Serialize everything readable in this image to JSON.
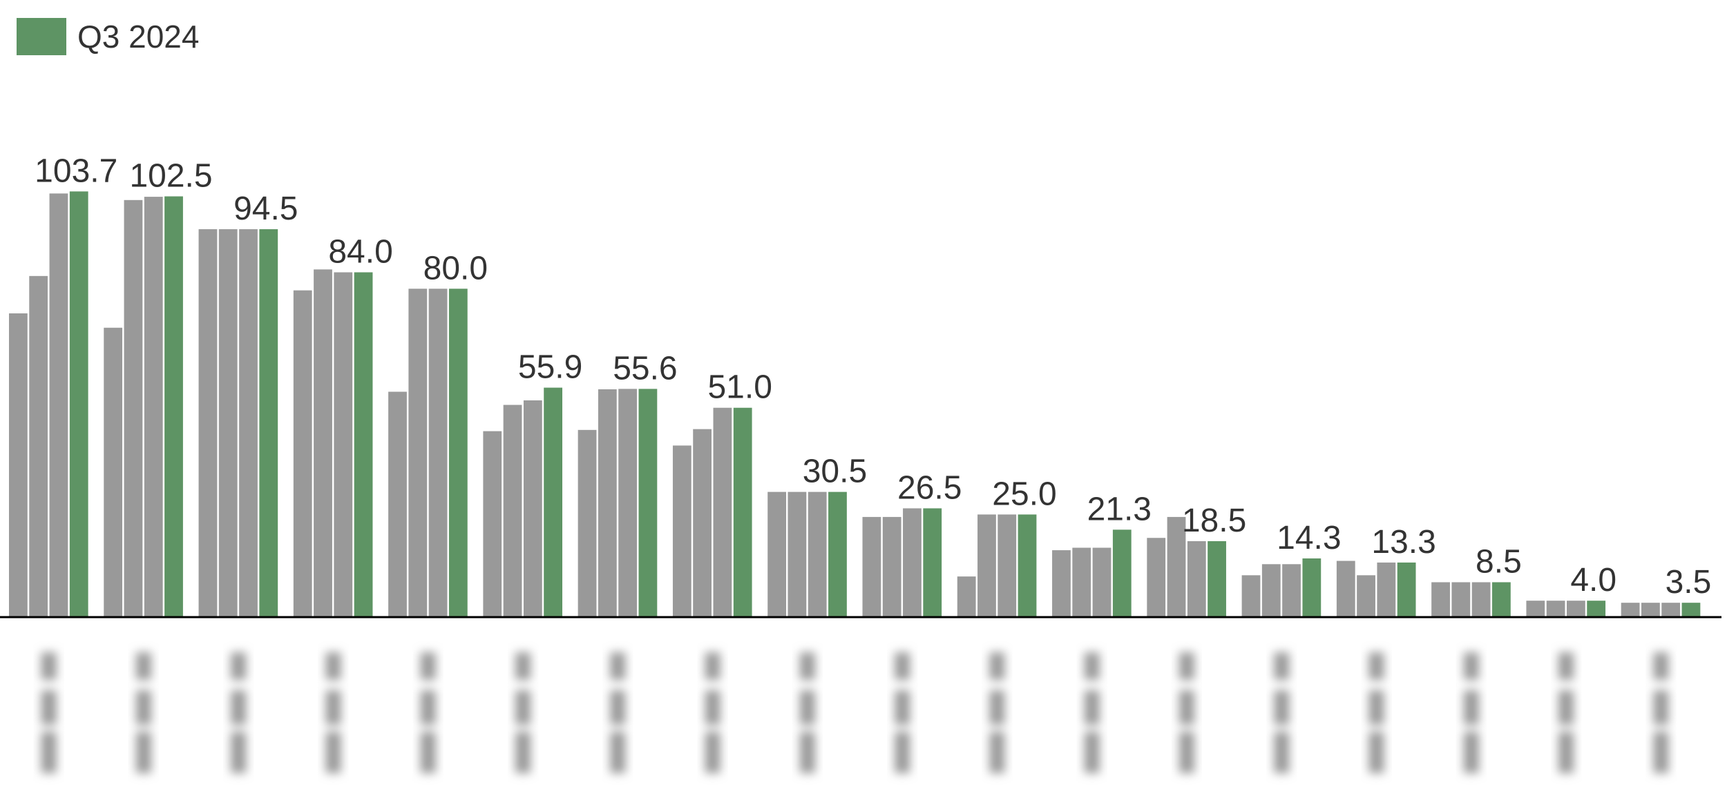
{
  "chart_data": {
    "type": "bar",
    "categories": [
      null,
      null,
      null,
      null,
      null,
      null,
      null,
      null,
      null,
      null,
      null,
      null,
      null,
      null,
      null,
      null,
      null,
      null
    ],
    "series": [
      {
        "color": "#999999",
        "values": [
          74.0,
          70.5,
          94.5,
          79.6,
          54.9,
          45.3,
          45.6,
          41.8,
          30.5,
          24.4,
          9.9,
          16.3,
          19.3,
          10.2,
          13.7,
          8.5,
          4.0,
          3.5
        ]
      },
      {
        "color": "#999999",
        "values": [
          83.1,
          101.6,
          94.5,
          84.7,
          80.0,
          51.7,
          55.5,
          45.8,
          30.5,
          24.4,
          25.0,
          16.9,
          24.4,
          12.9,
          10.2,
          8.5,
          4.0,
          3.5
        ]
      },
      {
        "color": "#999999",
        "values": [
          103.2,
          102.4,
          94.5,
          84.0,
          80.0,
          52.8,
          55.6,
          51.0,
          30.5,
          26.5,
          25.0,
          16.9,
          18.5,
          12.9,
          13.3,
          8.5,
          4.0,
          3.5
        ]
      },
      {
        "name": "Q3 2024",
        "color": "#5e9464",
        "values": [
          103.7,
          102.5,
          94.5,
          84.0,
          80.0,
          55.9,
          55.6,
          51.0,
          30.5,
          26.5,
          25.0,
          21.3,
          18.5,
          14.3,
          13.3,
          8.5,
          4.0,
          3.5
        ],
        "value_labels": [
          "103.7",
          "102.5",
          "94.5",
          "84.0",
          "80.0",
          "55.9",
          "55.6",
          "51.0",
          "30.5",
          "26.5",
          "25.0",
          "21.3",
          "18.5",
          "14.3",
          "13.3",
          "8.5",
          "4.0",
          "3.5"
        ]
      }
    ],
    "ylim": [
      0,
      150
    ],
    "legend": "top-left"
  }
}
